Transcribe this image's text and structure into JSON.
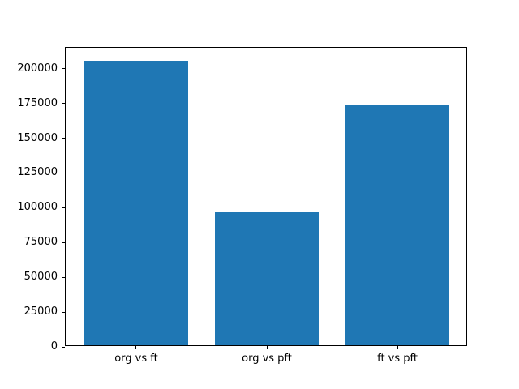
{
  "chart_data": {
    "type": "bar",
    "categories": [
      "org vs ft",
      "org vs pft",
      "ft vs pft"
    ],
    "values": [
      204800,
      95300,
      173200
    ],
    "title": "",
    "xlabel": "",
    "ylabel": "",
    "ylim": [
      0,
      215000
    ],
    "yticks": [
      0,
      25000,
      50000,
      75000,
      100000,
      125000,
      150000,
      175000,
      200000
    ],
    "bar_color": "#1f77b4",
    "bar_width_fraction": 0.8,
    "x_margin": 0.54,
    "grid": false,
    "legend": null
  },
  "figure": {
    "background": "#ffffff",
    "axis_color": "#000000"
  }
}
